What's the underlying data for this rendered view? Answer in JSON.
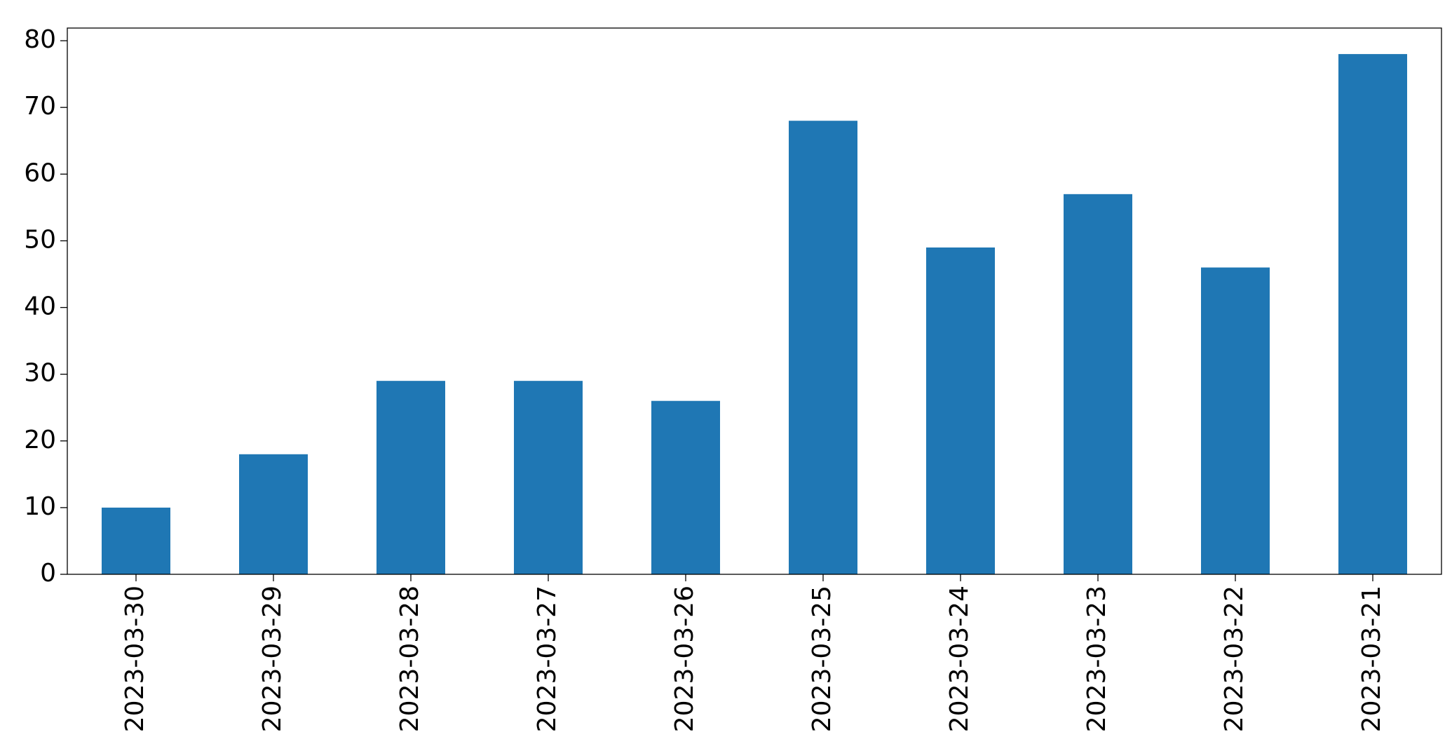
{
  "chart_data": {
    "type": "bar",
    "categories": [
      "2023-03-30",
      "2023-03-29",
      "2023-03-28",
      "2023-03-27",
      "2023-03-26",
      "2023-03-25",
      "2023-03-24",
      "2023-03-23",
      "2023-03-22",
      "2023-03-21"
    ],
    "values": [
      10,
      18,
      29,
      29,
      26,
      68,
      49,
      57,
      46,
      78
    ],
    "color": "#1f77b4",
    "ylim": [
      0,
      81.9
    ],
    "yticks": [
      0,
      10,
      20,
      30,
      40,
      50,
      60,
      70,
      80
    ],
    "grid": false
  }
}
